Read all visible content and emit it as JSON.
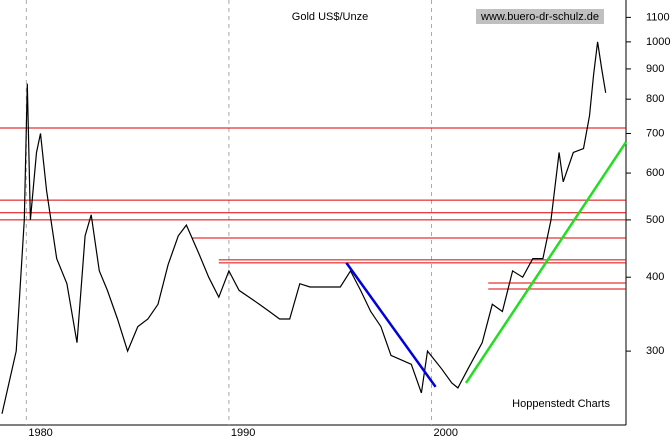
{
  "chart_data": {
    "type": "line",
    "title": "Gold US$/Unze",
    "source": "www.buero-dr-schulz.de",
    "credit": "Hoppenstedt Charts",
    "log_y": true,
    "color": "#000000",
    "xlim": [
      1978.7,
      2009.6
    ],
    "xticks": [
      1980,
      1990,
      2000
    ],
    "ylim": [
      225,
      1177
    ],
    "yticks": [
      300,
      400,
      500,
      600,
      700,
      800,
      900,
      1000,
      1100
    ],
    "x": [
      1978.8,
      1979.5,
      1979.9,
      1980.05,
      1980.2,
      1980.5,
      1980.7,
      1981.0,
      1981.5,
      1982.0,
      1982.5,
      1982.9,
      1983.2,
      1983.6,
      1984.0,
      1984.5,
      1985.0,
      1985.5,
      1986.0,
      1986.5,
      1987.0,
      1987.5,
      1987.9,
      1988.5,
      1989.0,
      1989.5,
      1990.0,
      1990.5,
      1991.0,
      1991.5,
      1992.0,
      1992.5,
      1993.0,
      1993.5,
      1994.0,
      1994.5,
      1995.0,
      1995.5,
      1996.0,
      1996.5,
      1997.0,
      1997.5,
      1998.0,
      1998.5,
      1999.0,
      1999.5,
      1999.8,
      2000.5,
      2001.0,
      2001.3,
      2001.8,
      2002.5,
      2003.0,
      2003.5,
      2004.0,
      2004.5,
      2005.0,
      2005.5,
      2005.9,
      2006.3,
      2006.5,
      2007.0,
      2007.5,
      2007.8,
      2008.0,
      2008.2,
      2008.4,
      2008.6
    ],
    "values": [
      235,
      300,
      500,
      850,
      500,
      650,
      700,
      560,
      430,
      390,
      310,
      470,
      510,
      410,
      380,
      340,
      300,
      330,
      340,
      360,
      420,
      470,
      490,
      440,
      400,
      370,
      410,
      380,
      370,
      360,
      350,
      340,
      340,
      390,
      385,
      385,
      385,
      385,
      410,
      380,
      350,
      330,
      295,
      290,
      285,
      255,
      300,
      280,
      265,
      260,
      280,
      310,
      360,
      350,
      410,
      400,
      430,
      430,
      500,
      650,
      580,
      650,
      660,
      750,
      880,
      1000,
      900,
      820
    ],
    "levels": [
      {
        "value": 715,
        "start": 1978.7
      },
      {
        "value": 540,
        "start": 1978.7
      },
      {
        "value": 514,
        "start": 1978.7
      },
      {
        "value": 500,
        "start": 1978.7
      },
      {
        "value": 466,
        "start": 1988.2
      },
      {
        "value": 428,
        "start": 1989.5
      },
      {
        "value": 423,
        "start": 1989.5
      },
      {
        "value": 391,
        "start": 2002.8
      },
      {
        "value": 382,
        "start": 2002.8
      }
    ],
    "level_color": "#dd0000",
    "trendlines": [
      {
        "color": "#0000dd",
        "x": [
          1995.8,
          2000.2
        ],
        "values": [
          423,
          261
        ]
      },
      {
        "color": "#22dd22",
        "x": [
          2001.7,
          2009.6
        ],
        "values": [
          265,
          677
        ]
      }
    ]
  }
}
